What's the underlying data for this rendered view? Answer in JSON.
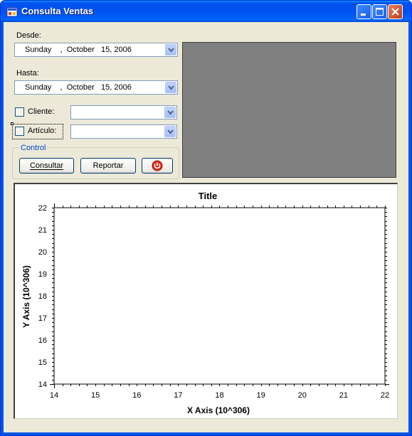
{
  "window": {
    "title": "Consulta Ventas"
  },
  "filters": {
    "desde_label": "Desde:",
    "desde_value": "Sunday    ,  October   15, 2006",
    "hasta_label": "Hasta:",
    "hasta_value": "Sunday    ,  October   15, 2006",
    "cliente_label": "Cliente:",
    "cliente_checked": false,
    "cliente_value": "",
    "articulo_label": "Artículo:",
    "articulo_checked": false,
    "articulo_value": ""
  },
  "control": {
    "group_title": "Control",
    "consultar_label": "Consultar",
    "reportar_label": "Reportar",
    "power_icon": "power-icon"
  },
  "chart_data": {
    "type": "line",
    "title": "Title",
    "xlabel": "X Axis (10^306)",
    "ylabel": "Y Axis (10^306)",
    "xlim": [
      14,
      22
    ],
    "ylim": [
      14,
      22
    ],
    "xticks": [
      "14",
      "15",
      "16",
      "17",
      "18",
      "19",
      "20",
      "21",
      "22"
    ],
    "yticks": [
      "14",
      "15",
      "16",
      "17",
      "18",
      "19",
      "20",
      "21",
      "22"
    ],
    "series": [],
    "grid": false
  }
}
